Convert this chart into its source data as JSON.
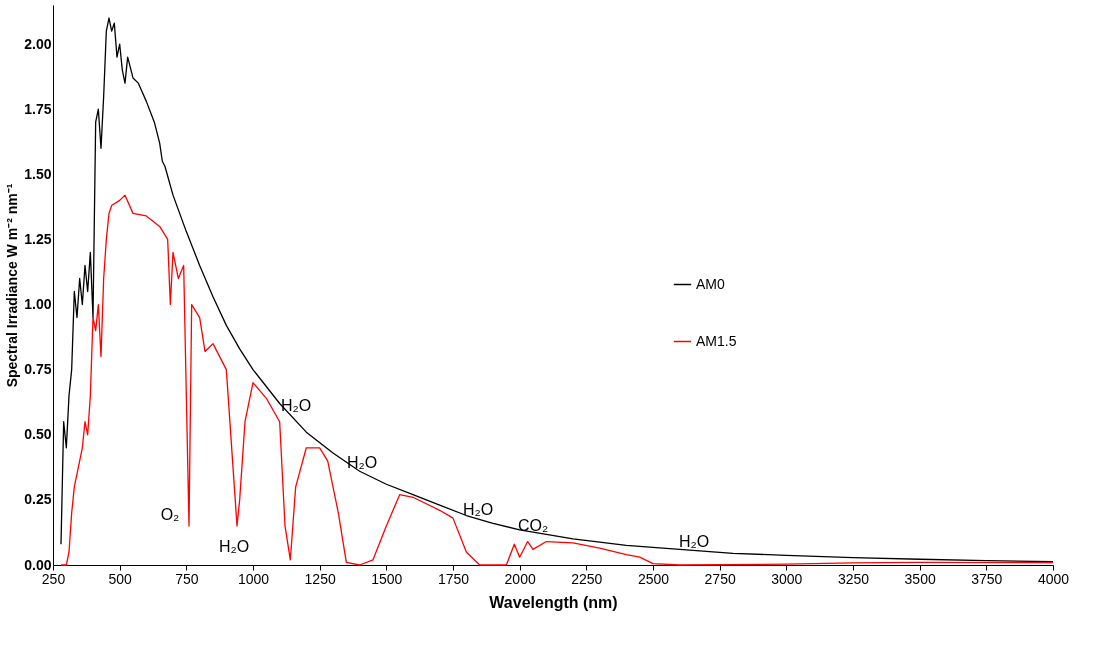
{
  "chart_data": {
    "type": "line",
    "xlabel": "Wavelength (nm)",
    "ylabel": "Spectral Irradiance W m⁻² nm⁻¹",
    "xlim": [
      250,
      4000
    ],
    "xticks": [
      250,
      500,
      750,
      1000,
      1250,
      1500,
      1750,
      2000,
      2250,
      2500,
      2750,
      3000,
      3250,
      3500,
      3750,
      4000
    ],
    "ylim": [
      0,
      2.15
    ],
    "yticks": [
      {
        "value": 0,
        "label": "0.00"
      },
      {
        "value": 0.25,
        "label": "0.25"
      },
      {
        "value": 0.5,
        "label": "0.50"
      },
      {
        "value": 0.75,
        "label": "0.75"
      },
      {
        "value": 1,
        "label": "1.00"
      },
      {
        "value": 1.25,
        "label": "1.25"
      },
      {
        "value": 1.5,
        "label": "1.50"
      },
      {
        "value": 1.75,
        "label": "1.75"
      },
      {
        "value": 2,
        "label": "2.00"
      }
    ],
    "grid": false,
    "legend": "right",
    "marker": "none",
    "line_style": "solid",
    "series": [
      {
        "name": "AM0",
        "color": "#000000",
        "x": [
          280,
          290,
          300,
          310,
          320,
          330,
          340,
          350,
          360,
          370,
          380,
          390,
          400,
          410,
          420,
          430,
          440,
          450,
          460,
          470,
          480,
          490,
          500,
          510,
          520,
          530,
          550,
          570,
          600,
          630,
          650,
          660,
          670,
          700,
          750,
          800,
          850,
          900,
          950,
          1000,
          1100,
          1200,
          1300,
          1400,
          1500,
          1600,
          1700,
          1800,
          1900,
          2000,
          2200,
          2400,
          2600,
          2800,
          3000,
          3250,
          3500,
          3750,
          4000
        ],
        "values": [
          0.08,
          0.55,
          0.45,
          0.65,
          0.75,
          1.05,
          0.95,
          1.1,
          1.0,
          1.15,
          1.05,
          1.2,
          0.95,
          1.7,
          1.75,
          1.6,
          1.8,
          2.05,
          2.1,
          2.05,
          2.08,
          1.95,
          2.0,
          1.9,
          1.85,
          1.95,
          1.87,
          1.85,
          1.78,
          1.7,
          1.62,
          1.55,
          1.53,
          1.42,
          1.28,
          1.15,
          1.03,
          0.92,
          0.83,
          0.75,
          0.62,
          0.51,
          0.43,
          0.36,
          0.31,
          0.27,
          0.23,
          0.19,
          0.16,
          0.135,
          0.1,
          0.075,
          0.06,
          0.045,
          0.037,
          0.028,
          0.022,
          0.017,
          0.013
        ]
      },
      {
        "name": "AM1.5",
        "color": "#ff0000",
        "x": [
          280,
          300,
          310,
          320,
          330,
          340,
          350,
          360,
          370,
          380,
          390,
          400,
          410,
          420,
          430,
          440,
          450,
          460,
          470,
          500,
          520,
          550,
          600,
          650,
          680,
          690,
          700,
          720,
          740,
          760,
          770,
          800,
          820,
          850,
          900,
          930,
          940,
          950,
          970,
          1000,
          1050,
          1100,
          1120,
          1140,
          1160,
          1200,
          1250,
          1280,
          1320,
          1350,
          1400,
          1450,
          1500,
          1550,
          1600,
          1700,
          1750,
          1800,
          1850,
          1950,
          1980,
          2000,
          2030,
          2050,
          2100,
          2200,
          2300,
          2400,
          2450,
          2500,
          2600,
          3000,
          3250,
          3500,
          4000
        ],
        "values": [
          0,
          0,
          0.05,
          0.2,
          0.3,
          0.35,
          0.4,
          0.45,
          0.55,
          0.5,
          0.65,
          0.95,
          0.9,
          1.0,
          0.8,
          1.1,
          1.25,
          1.35,
          1.38,
          1.4,
          1.42,
          1.35,
          1.34,
          1.3,
          1.25,
          1.0,
          1.2,
          1.1,
          1.15,
          0.15,
          1.0,
          0.95,
          0.82,
          0.85,
          0.75,
          0.3,
          0.15,
          0.25,
          0.55,
          0.7,
          0.64,
          0.55,
          0.15,
          0.02,
          0.3,
          0.45,
          0.45,
          0.4,
          0.2,
          0.01,
          0,
          0.02,
          0.15,
          0.27,
          0.26,
          0.21,
          0.18,
          0.05,
          0,
          0,
          0.08,
          0.03,
          0.09,
          0.06,
          0.09,
          0.085,
          0.065,
          0.04,
          0.03,
          0.005,
          0,
          0.003,
          0.008,
          0.01,
          0.009
        ]
      }
    ],
    "annotations": [
      "O₂",
      "H₂O",
      "H₂O",
      "H₂O",
      "H₂O",
      "CO₂",
      "H₂O"
    ]
  }
}
